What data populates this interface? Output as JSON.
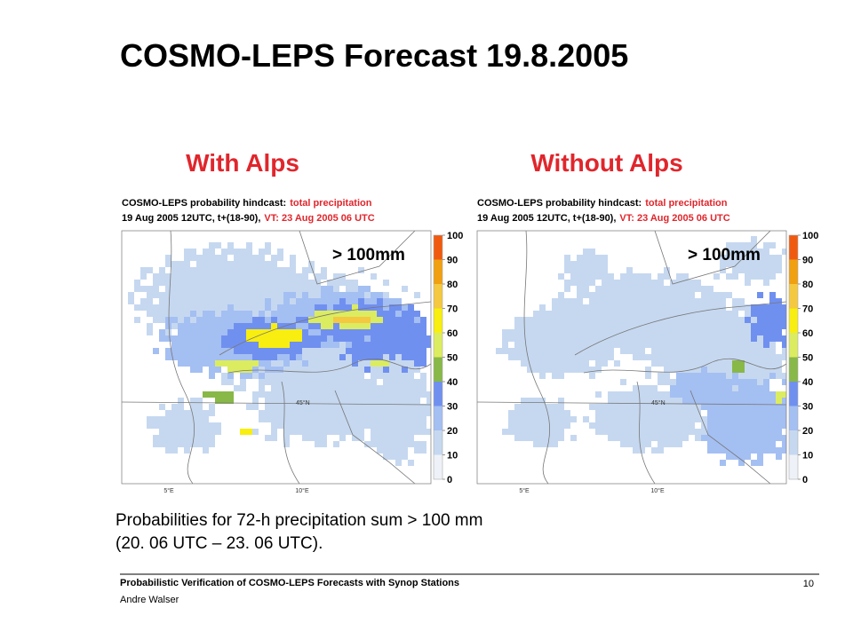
{
  "title": "COSMO-LEPS Forecast 19.8.2005",
  "panels": [
    {
      "label": "With Alps",
      "header_line1": "COSMO-LEPS probability hindcast:",
      "header_line1_highlight": "total precipitation",
      "header_line2": "19 Aug 2005 12UTC, t+(18-90),",
      "header_line2_highlight": "VT: 23 Aug 2005 06 UTC",
      "threshold": "> 100mm",
      "lat_label": "45°N",
      "lon_labels": [
        "5°E",
        "10°E"
      ]
    },
    {
      "label": "Without Alps",
      "header_line1": "COSMO-LEPS probability hindcast:",
      "header_line1_highlight": "total precipitation",
      "header_line2": "19 Aug 2005 12UTC, t+(18-90),",
      "header_line2_highlight": "VT: 23 Aug 2005 06 UTC",
      "threshold": "> 100mm",
      "lat_label": "45°N",
      "lon_labels": [
        "5°E",
        "10°E"
      ]
    }
  ],
  "colorbar": {
    "ticks": [
      0,
      10,
      20,
      30,
      40,
      50,
      60,
      70,
      80,
      90,
      100
    ],
    "colors": [
      "#eef2f8",
      "#c6d8f0",
      "#a4bff2",
      "#7090f0",
      "#88b848",
      "#dcec60",
      "#f8ee10",
      "#f4c840",
      "#f0a010",
      "#f05a10"
    ]
  },
  "caption": [
    "Probabilities for 72-h precipitation sum > 100 mm",
    "(20. 06 UTC – 23. 06 UTC)."
  ],
  "footer": {
    "title": "Probabilistic Verification of COSMO-LEPS Forecasts with Synop Stations",
    "author": "Andre Walser",
    "page": "10"
  }
}
